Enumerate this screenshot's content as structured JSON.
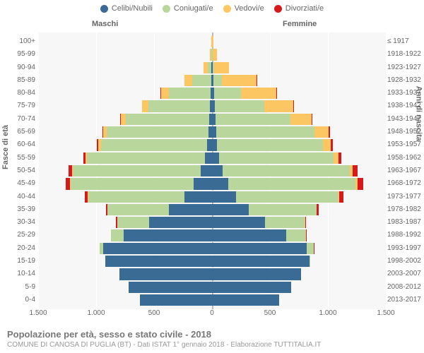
{
  "chart": {
    "type": "population-pyramid",
    "background_color": "#ffffff",
    "plot_background": "#f7f7f7",
    "grid_color": "#ffffff",
    "text_color": "#666666",
    "legend": [
      {
        "label": "Celibi/Nubili",
        "color": "#396b95"
      },
      {
        "label": "Coniugati/e",
        "color": "#b9d69d"
      },
      {
        "label": "Vedovi/e",
        "color": "#fcc762"
      },
      {
        "label": "Divorziati/e",
        "color": "#d7191c"
      }
    ],
    "header_male": "Maschi",
    "header_female": "Femmine",
    "y_axis_left_title": "Fasce di età",
    "y_axis_right_title": "Anni di nascita",
    "x_axis": {
      "max": 1500,
      "ticks": [
        1500,
        1000,
        500,
        0,
        500,
        1000,
        1500
      ],
      "tick_labels": [
        "1.500",
        "1.000",
        "500",
        "0",
        "500",
        "1.000",
        "1.500"
      ]
    },
    "age_groups": [
      "100+",
      "95-99",
      "90-94",
      "85-89",
      "80-84",
      "75-79",
      "70-74",
      "65-69",
      "60-64",
      "55-59",
      "50-54",
      "45-49",
      "40-44",
      "35-39",
      "30-34",
      "25-29",
      "20-24",
      "15-19",
      "10-14",
      "5-9",
      "0-4"
    ],
    "birth_years": [
      "≤ 1917",
      "1918-1922",
      "1923-1927",
      "1928-1932",
      "1933-1937",
      "1938-1942",
      "1943-1947",
      "1948-1952",
      "1953-1957",
      "1958-1962",
      "1963-1967",
      "1968-1972",
      "1973-1977",
      "1978-1982",
      "1983-1987",
      "1988-1992",
      "1993-1997",
      "1998-2002",
      "2003-2007",
      "2008-2012",
      "2013-2017"
    ],
    "male": [
      {
        "single": 0,
        "married": 0,
        "widowed": 5,
        "divorced": 0
      },
      {
        "single": 2,
        "married": 3,
        "widowed": 12,
        "divorced": 0
      },
      {
        "single": 5,
        "married": 30,
        "widowed": 40,
        "divorced": 0
      },
      {
        "single": 8,
        "married": 160,
        "widowed": 70,
        "divorced": 0
      },
      {
        "single": 12,
        "married": 360,
        "widowed": 70,
        "divorced": 3
      },
      {
        "single": 18,
        "married": 530,
        "widowed": 55,
        "divorced": 4
      },
      {
        "single": 22,
        "married": 720,
        "widowed": 45,
        "divorced": 6
      },
      {
        "single": 30,
        "married": 880,
        "widowed": 30,
        "divorced": 8
      },
      {
        "single": 40,
        "married": 920,
        "widowed": 20,
        "divorced": 12
      },
      {
        "single": 60,
        "married": 1020,
        "widowed": 10,
        "divorced": 18
      },
      {
        "single": 100,
        "married": 1100,
        "widowed": 8,
        "divorced": 30
      },
      {
        "single": 160,
        "married": 1060,
        "widowed": 5,
        "divorced": 35
      },
      {
        "single": 240,
        "married": 830,
        "widowed": 3,
        "divorced": 25
      },
      {
        "single": 370,
        "married": 530,
        "widowed": 2,
        "divorced": 15
      },
      {
        "single": 540,
        "married": 280,
        "widowed": 0,
        "divorced": 8
      },
      {
        "single": 760,
        "married": 110,
        "widowed": 0,
        "divorced": 4
      },
      {
        "single": 940,
        "married": 30,
        "widowed": 0,
        "divorced": 0
      },
      {
        "single": 920,
        "married": 0,
        "widowed": 0,
        "divorced": 0
      },
      {
        "single": 800,
        "married": 0,
        "widowed": 0,
        "divorced": 0
      },
      {
        "single": 720,
        "married": 0,
        "widowed": 0,
        "divorced": 0
      },
      {
        "single": 620,
        "married": 0,
        "widowed": 0,
        "divorced": 0
      }
    ],
    "female": [
      {
        "single": 2,
        "married": 0,
        "widowed": 8,
        "divorced": 0
      },
      {
        "single": 3,
        "married": 2,
        "widowed": 40,
        "divorced": 0
      },
      {
        "single": 8,
        "married": 10,
        "widowed": 130,
        "divorced": 0
      },
      {
        "single": 15,
        "married": 70,
        "widowed": 300,
        "divorced": 2
      },
      {
        "single": 18,
        "married": 230,
        "widowed": 310,
        "divorced": 3
      },
      {
        "single": 22,
        "married": 430,
        "widowed": 250,
        "divorced": 5
      },
      {
        "single": 28,
        "married": 650,
        "widowed": 180,
        "divorced": 8
      },
      {
        "single": 35,
        "married": 850,
        "widowed": 120,
        "divorced": 12
      },
      {
        "single": 45,
        "married": 910,
        "widowed": 70,
        "divorced": 18
      },
      {
        "single": 60,
        "married": 990,
        "widowed": 40,
        "divorced": 25
      },
      {
        "single": 90,
        "married": 1100,
        "widowed": 25,
        "divorced": 40
      },
      {
        "single": 140,
        "married": 1100,
        "widowed": 15,
        "divorced": 50
      },
      {
        "single": 210,
        "married": 880,
        "widowed": 8,
        "divorced": 35
      },
      {
        "single": 320,
        "married": 580,
        "widowed": 4,
        "divorced": 20
      },
      {
        "single": 460,
        "married": 340,
        "widowed": 2,
        "divorced": 10
      },
      {
        "single": 640,
        "married": 170,
        "widowed": 0,
        "divorced": 5
      },
      {
        "single": 820,
        "married": 60,
        "widowed": 0,
        "divorced": 2
      },
      {
        "single": 840,
        "married": 5,
        "widowed": 0,
        "divorced": 0
      },
      {
        "single": 770,
        "married": 0,
        "widowed": 0,
        "divorced": 0
      },
      {
        "single": 680,
        "married": 0,
        "widowed": 0,
        "divorced": 0
      },
      {
        "single": 580,
        "married": 0,
        "widowed": 0,
        "divorced": 0
      }
    ]
  },
  "footer": {
    "title": "Popolazione per età, sesso e stato civile - 2018",
    "subtitle": "COMUNE DI CANOSA DI PUGLIA (BT) - Dati ISTAT 1° gennaio 2018 - Elaborazione TUTTITALIA.IT"
  }
}
